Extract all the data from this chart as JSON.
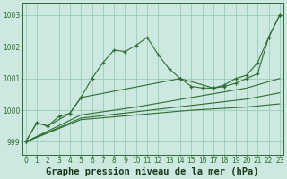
{
  "title": "Graphe pression niveau de la mer (hPa)",
  "bg_color": "#cce8e0",
  "grid_color": "#99ccbb",
  "line_color": "#2d6e2d",
  "series": [
    {
      "x": [
        0,
        1,
        2,
        3,
        4,
        5,
        6,
        7,
        8,
        9,
        10,
        11,
        12,
        13,
        14,
        15,
        16,
        17,
        18,
        19,
        20,
        21,
        22,
        23
      ],
      "y": [
        999.0,
        999.6,
        999.5,
        999.8,
        999.9,
        1000.4,
        1001.0,
        1001.5,
        1001.9,
        1001.85,
        1002.05,
        1002.3,
        1001.75,
        1001.3,
        1001.0,
        1000.75,
        1000.7,
        1000.7,
        1000.8,
        1001.0,
        1001.1,
        1001.5,
        1002.3,
        1003.0
      ],
      "has_markers": true
    },
    {
      "x": [
        0,
        5,
        10,
        15,
        20,
        23
      ],
      "y": [
        999.0,
        999.7,
        999.85,
        1000.0,
        1000.1,
        1000.2
      ],
      "has_markers": false
    },
    {
      "x": [
        0,
        5,
        10,
        15,
        20,
        23
      ],
      "y": [
        999.0,
        999.75,
        999.95,
        1000.15,
        1000.35,
        1000.55
      ],
      "has_markers": false
    },
    {
      "x": [
        0,
        5,
        10,
        15,
        20,
        23
      ],
      "y": [
        999.0,
        999.85,
        1000.1,
        1000.4,
        1000.7,
        1001.0
      ],
      "has_markers": false
    },
    {
      "x": [
        0,
        1,
        2,
        4,
        5,
        14,
        17,
        18,
        19,
        20,
        21,
        22,
        23
      ],
      "y": [
        999.0,
        999.6,
        999.5,
        999.9,
        1000.4,
        1001.0,
        1000.7,
        1000.75,
        1000.85,
        1001.0,
        1001.15,
        1002.3,
        1003.0
      ],
      "has_markers": true
    }
  ],
  "xlim": [
    0,
    23
  ],
  "ylim": [
    998.6,
    1003.4
  ],
  "yticks": [
    999,
    1000,
    1001,
    1002,
    1003
  ],
  "xticks": [
    0,
    1,
    2,
    3,
    4,
    5,
    6,
    7,
    8,
    9,
    10,
    11,
    12,
    13,
    14,
    15,
    16,
    17,
    18,
    19,
    20,
    21,
    22,
    23
  ],
  "title_fontsize": 7.5,
  "tick_fontsize": 5.5,
  "linewidth": 0.8,
  "markersize": 3.5
}
